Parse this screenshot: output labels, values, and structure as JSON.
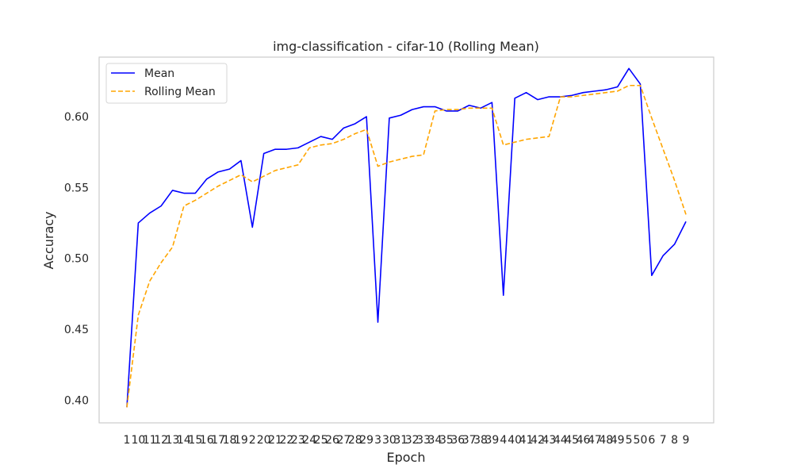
{
  "chart_data": {
    "type": "line",
    "title": "img-classification - cifar-10 (Rolling Mean)",
    "xlabel": "Epoch",
    "ylabel": "Accuracy",
    "ylim": [
      0.384,
      0.642
    ],
    "yticks": [
      "0.40",
      "0.45",
      "0.50",
      "0.55",
      "0.60"
    ],
    "grid": false,
    "legend_position": "upper-left",
    "categories": [
      "1",
      "10",
      "11",
      "12",
      "13",
      "14",
      "15",
      "16",
      "17",
      "18",
      "19",
      "2",
      "20",
      "21",
      "22",
      "23",
      "24",
      "25",
      "26",
      "27",
      "28",
      "29",
      "3",
      "30",
      "31",
      "32",
      "33",
      "34",
      "35",
      "36",
      "37",
      "38",
      "39",
      "4",
      "40",
      "41",
      "42",
      "43",
      "44",
      "45",
      "46",
      "47",
      "48",
      "49",
      "5",
      "50",
      "6",
      "7",
      "8",
      "9"
    ],
    "series": [
      {
        "name": "Mean",
        "color": "#0000ff",
        "style": "solid",
        "values": [
          0.395,
          0.525,
          0.532,
          0.537,
          0.548,
          0.546,
          0.546,
          0.556,
          0.561,
          0.563,
          0.569,
          0.522,
          0.574,
          0.577,
          0.577,
          0.578,
          0.582,
          0.586,
          0.584,
          0.592,
          0.595,
          0.6,
          0.455,
          0.599,
          0.601,
          0.605,
          0.607,
          0.607,
          0.604,
          0.604,
          0.608,
          0.606,
          0.61,
          0.474,
          0.613,
          0.617,
          0.612,
          0.614,
          0.614,
          0.615,
          0.617,
          0.618,
          0.619,
          0.621,
          0.634,
          0.623,
          0.488,
          0.502,
          0.51,
          0.526
        ]
      },
      {
        "name": "Rolling Mean",
        "color": "#ffa500",
        "style": "dashed",
        "values": [
          0.395,
          0.46,
          0.484,
          0.497,
          0.508,
          0.537,
          0.541,
          0.546,
          0.551,
          0.555,
          0.559,
          0.554,
          0.558,
          0.562,
          0.564,
          0.566,
          0.578,
          0.58,
          0.581,
          0.584,
          0.588,
          0.591,
          0.565,
          0.568,
          0.57,
          0.572,
          0.573,
          0.604,
          0.605,
          0.605,
          0.606,
          0.606,
          0.606,
          0.58,
          0.582,
          0.584,
          0.585,
          0.586,
          0.614,
          0.614,
          0.615,
          0.616,
          0.617,
          0.618,
          0.622,
          0.622,
          0.599,
          0.577,
          0.555,
          0.531
        ]
      }
    ]
  }
}
